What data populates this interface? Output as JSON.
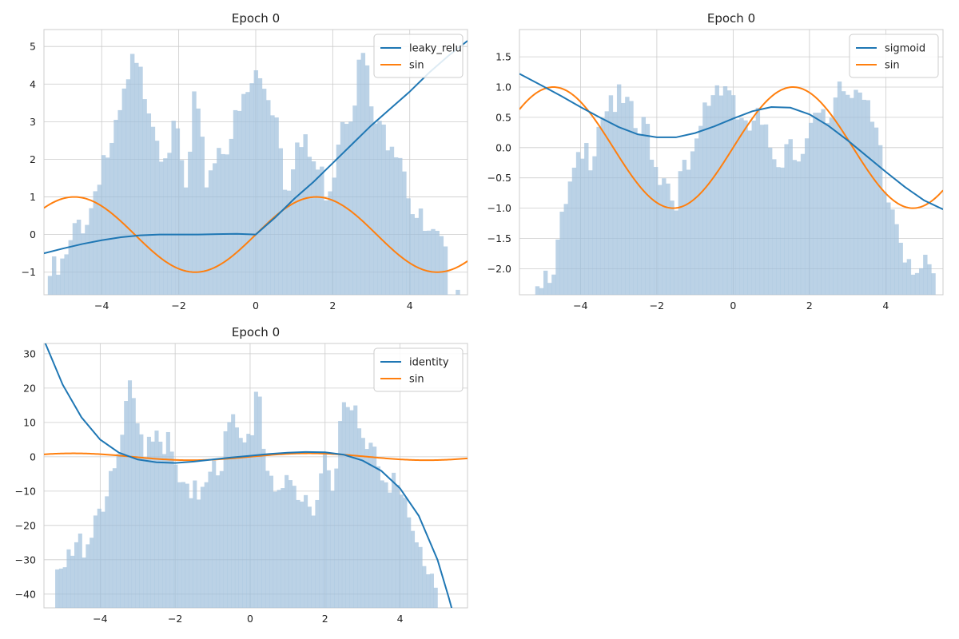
{
  "figure_title": "",
  "colors": {
    "model_line": "#1f77b4",
    "sin_line": "#ff7f0e",
    "histogram": "#9ebfdb"
  },
  "chart_data": [
    {
      "type": "histogram+line",
      "title": "Epoch 0",
      "activation": "leaky_relu",
      "legend_location": "top-right",
      "legend": [
        "leaky_relu",
        "sin"
      ],
      "xlim": [
        -5.5,
        5.5
      ],
      "ylim": [
        -1.6,
        5.45
      ],
      "xticks": [
        -4,
        -2,
        0,
        2,
        4
      ],
      "yticks": [
        -1,
        0,
        1,
        2,
        3,
        4,
        5
      ],
      "xtick_labels": [
        "−4",
        "−2",
        "0",
        "2",
        "4"
      ],
      "ytick_labels": [
        "−1",
        "0",
        "1",
        "2",
        "3",
        "4",
        "5"
      ],
      "histogram_envelope": [
        [
          -5.4,
          -1.1
        ],
        [
          -5.1,
          -1.1
        ],
        [
          -4.9,
          -0.7
        ],
        [
          -4.6,
          0.3
        ],
        [
          -4.3,
          0.6
        ],
        [
          -4.0,
          2.1
        ],
        [
          -3.7,
          2.2
        ],
        [
          -3.5,
          3.2
        ],
        [
          -3.2,
          4.4
        ],
        [
          -3.0,
          4.1
        ],
        [
          -2.8,
          3.8
        ],
        [
          -2.5,
          2.5
        ],
        [
          -2.2,
          2.5
        ],
        [
          -2.0,
          2.4
        ],
        [
          -1.8,
          0.9
        ],
        [
          -1.6,
          3.5
        ],
        [
          -1.3,
          1.5
        ],
        [
          -1.0,
          2.3
        ],
        [
          -0.8,
          2.5
        ],
        [
          -0.5,
          2.9
        ],
        [
          -0.3,
          3.5
        ],
        [
          0.0,
          4.2
        ],
        [
          0.3,
          3.9
        ],
        [
          0.6,
          3.0
        ],
        [
          0.8,
          1.2
        ],
        [
          1.0,
          2.4
        ],
        [
          1.3,
          2.2
        ],
        [
          1.5,
          1.9
        ],
        [
          1.8,
          1.3
        ],
        [
          2.0,
          1.6
        ],
        [
          2.2,
          3.2
        ],
        [
          2.5,
          3.6
        ],
        [
          2.8,
          4.8
        ],
        [
          3.0,
          3.3
        ],
        [
          3.2,
          2.6
        ],
        [
          3.5,
          2.8
        ],
        [
          3.8,
          2.3
        ],
        [
          4.0,
          1.1
        ],
        [
          4.2,
          0.4
        ],
        [
          4.5,
          -0.2
        ],
        [
          4.8,
          -0.4
        ],
        [
          5.0,
          -1.1
        ],
        [
          5.3,
          -1.2
        ]
      ],
      "model_curve": [
        [
          -5.5,
          -0.5
        ],
        [
          -5.0,
          -0.37
        ],
        [
          -4.5,
          -0.25
        ],
        [
          -4.0,
          -0.15
        ],
        [
          -3.5,
          -0.07
        ],
        [
          -3.0,
          -0.02
        ],
        [
          -2.5,
          0.0
        ],
        [
          -2.0,
          0.0
        ],
        [
          -1.5,
          0.0
        ],
        [
          -1.0,
          0.01
        ],
        [
          -0.5,
          0.02
        ],
        [
          0.0,
          0.0
        ],
        [
          0.5,
          0.45
        ],
        [
          1.0,
          0.95
        ],
        [
          1.5,
          1.4
        ],
        [
          2.0,
          1.9
        ],
        [
          2.5,
          2.4
        ],
        [
          3.0,
          2.9
        ],
        [
          3.5,
          3.35
        ],
        [
          4.0,
          3.8
        ],
        [
          4.5,
          4.3
        ],
        [
          5.0,
          4.75
        ],
        [
          5.5,
          5.15
        ]
      ],
      "sin_function": "sin(x)"
    },
    {
      "type": "histogram+line",
      "title": "Epoch 0",
      "activation": "sigmoid",
      "legend_location": "top-right",
      "legend": [
        "sigmoid",
        "sin"
      ],
      "xlim": [
        -5.6,
        5.5
      ],
      "ylim": [
        -2.43,
        1.95
      ],
      "xticks": [
        -4,
        -2,
        0,
        2,
        4
      ],
      "yticks": [
        -2.0,
        -1.5,
        -1.0,
        -0.5,
        0.0,
        0.5,
        1.0,
        1.5
      ],
      "xtick_labels": [
        "−4",
        "−2",
        "0",
        "2",
        "4"
      ],
      "ytick_labels": [
        "−2.0",
        "−1.5",
        "−1.0",
        "−0.5",
        "0.0",
        "0.5",
        "1.0",
        "1.5"
      ],
      "histogram_envelope": [
        [
          -5.4,
          -2.2
        ],
        [
          -5.1,
          -2.1
        ],
        [
          -4.9,
          -2.0
        ],
        [
          -4.6,
          -1.7
        ],
        [
          -4.3,
          -0.8
        ],
        [
          -4.0,
          -0.3
        ],
        [
          -3.7,
          0.0
        ],
        [
          -3.5,
          0.6
        ],
        [
          -3.2,
          0.9
        ],
        [
          -3.0,
          0.7
        ],
        [
          -2.8,
          0.6
        ],
        [
          -2.5,
          0.2
        ],
        [
          -2.2,
          0.3
        ],
        [
          -2.0,
          -0.4
        ],
        [
          -1.8,
          -0.3
        ],
        [
          -1.6,
          -0.8
        ],
        [
          -1.3,
          -0.5
        ],
        [
          -1.0,
          -0.3
        ],
        [
          -0.8,
          0.5
        ],
        [
          -0.5,
          1.0
        ],
        [
          -0.3,
          1.2
        ],
        [
          0.0,
          0.9
        ],
        [
          0.3,
          0.1
        ],
        [
          0.6,
          0.5
        ],
        [
          0.8,
          0.1
        ],
        [
          1.0,
          0.0
        ],
        [
          1.3,
          -0.1
        ],
        [
          1.5,
          0.3
        ],
        [
          1.8,
          -0.2
        ],
        [
          2.0,
          0.1
        ],
        [
          2.2,
          0.4
        ],
        [
          2.5,
          0.4
        ],
        [
          2.8,
          1.2
        ],
        [
          3.0,
          1.0
        ],
        [
          3.2,
          1.2
        ],
        [
          3.5,
          0.5
        ],
        [
          3.8,
          0.0
        ],
        [
          4.0,
          -0.9
        ],
        [
          4.2,
          -1.0
        ],
        [
          4.5,
          -1.6
        ],
        [
          4.8,
          -1.9
        ],
        [
          5.0,
          -2.1
        ],
        [
          5.3,
          -2.2
        ]
      ],
      "model_curve": [
        [
          -5.6,
          1.22
        ],
        [
          -5.0,
          1.02
        ],
        [
          -4.5,
          0.85
        ],
        [
          -4.0,
          0.67
        ],
        [
          -3.5,
          0.5
        ],
        [
          -3.0,
          0.34
        ],
        [
          -2.5,
          0.22
        ],
        [
          -2.0,
          0.17
        ],
        [
          -1.5,
          0.17
        ],
        [
          -1.0,
          0.24
        ],
        [
          -0.5,
          0.35
        ],
        [
          0.0,
          0.48
        ],
        [
          0.5,
          0.6
        ],
        [
          1.0,
          0.67
        ],
        [
          1.5,
          0.66
        ],
        [
          2.0,
          0.55
        ],
        [
          2.5,
          0.36
        ],
        [
          3.0,
          0.12
        ],
        [
          3.5,
          -0.14
        ],
        [
          4.0,
          -0.4
        ],
        [
          4.5,
          -0.65
        ],
        [
          5.0,
          -0.87
        ],
        [
          5.5,
          -1.02
        ]
      ],
      "sin_function": "sin(x)"
    },
    {
      "type": "histogram+line",
      "title": "Epoch 0",
      "activation": "identity",
      "legend_location": "top-right",
      "legend": [
        "identity",
        "sin"
      ],
      "xlim": [
        -5.5,
        5.8
      ],
      "ylim": [
        -44,
        33
      ],
      "xticks": [
        -4,
        -2,
        0,
        2,
        4
      ],
      "yticks": [
        -40,
        -30,
        -20,
        -10,
        0,
        10,
        20,
        30
      ],
      "xtick_labels": [
        "−4",
        "−2",
        "0",
        "2",
        "4"
      ],
      "ytick_labels": [
        "−40",
        "−30",
        "−20",
        "−10",
        "0",
        "10",
        "20",
        "30"
      ],
      "histogram_envelope": [
        [
          -5.2,
          -40
        ],
        [
          -4.9,
          -33
        ],
        [
          -4.6,
          -27
        ],
        [
          -4.3,
          -22
        ],
        [
          -4.0,
          -12
        ],
        [
          -3.7,
          -10
        ],
        [
          -3.5,
          0
        ],
        [
          -3.2,
          18
        ],
        [
          -3.0,
          8
        ],
        [
          -2.8,
          5
        ],
        [
          -2.5,
          10
        ],
        [
          -2.2,
          3
        ],
        [
          -2.0,
          -5
        ],
        [
          -1.8,
          -10
        ],
        [
          -1.6,
          -15
        ],
        [
          -1.3,
          -8
        ],
        [
          -1.0,
          2
        ],
        [
          -0.8,
          -2
        ],
        [
          -0.5,
          10
        ],
        [
          -0.3,
          2
        ],
        [
          0.0,
          5
        ],
        [
          0.2,
          25
        ],
        [
          0.4,
          0
        ],
        [
          0.6,
          -5
        ],
        [
          0.8,
          -8
        ],
        [
          1.0,
          -12
        ],
        [
          1.3,
          -15
        ],
        [
          1.5,
          -13
        ],
        [
          1.8,
          -10
        ],
        [
          2.0,
          2
        ],
        [
          2.2,
          -4
        ],
        [
          2.5,
          12
        ],
        [
          2.8,
          12
        ],
        [
          3.0,
          2
        ],
        [
          3.2,
          8
        ],
        [
          3.5,
          -2
        ],
        [
          3.8,
          -6
        ],
        [
          4.0,
          -12
        ],
        [
          4.2,
          -20
        ],
        [
          4.5,
          -28
        ],
        [
          4.8,
          -32
        ],
        [
          5.0,
          -38
        ]
      ],
      "model_curve": [
        [
          -5.5,
          34
        ],
        [
          -5.0,
          21
        ],
        [
          -4.5,
          11.5
        ],
        [
          -4.0,
          5.0
        ],
        [
          -3.5,
          1.2
        ],
        [
          -3.0,
          -0.8
        ],
        [
          -2.5,
          -1.6
        ],
        [
          -2.0,
          -1.8
        ],
        [
          -1.5,
          -1.4
        ],
        [
          -1.0,
          -0.8
        ],
        [
          -0.5,
          -0.2
        ],
        [
          0.0,
          0.3
        ],
        [
          0.5,
          0.8
        ],
        [
          1.0,
          1.2
        ],
        [
          1.5,
          1.4
        ],
        [
          2.0,
          1.3
        ],
        [
          2.5,
          0.6
        ],
        [
          3.0,
          -1.1
        ],
        [
          3.5,
          -4.1
        ],
        [
          4.0,
          -9.2
        ],
        [
          4.5,
          -17.2
        ],
        [
          5.0,
          -30
        ],
        [
          5.3,
          -41
        ],
        [
          5.5,
          -49
        ]
      ],
      "sin_function": "sin(x)"
    }
  ]
}
